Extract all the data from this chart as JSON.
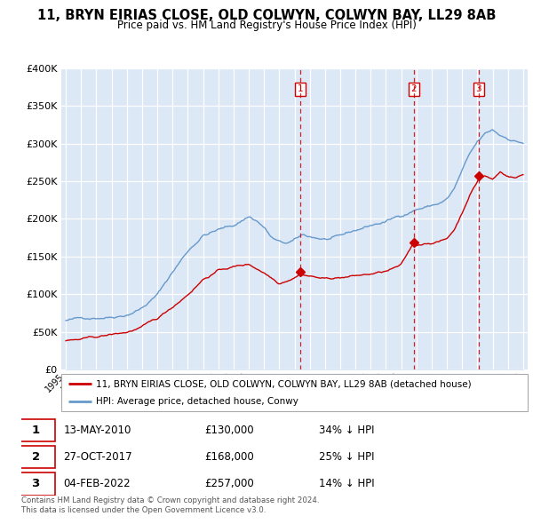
{
  "title": "11, BRYN EIRIAS CLOSE, OLD COLWYN, COLWYN BAY, LL29 8AB",
  "subtitle": "Price paid vs. HM Land Registry's House Price Index (HPI)",
  "legend_property": "11, BRYN EIRIAS CLOSE, OLD COLWYN, COLWYN BAY, LL29 8AB (detached house)",
  "legend_hpi": "HPI: Average price, detached house, Conwy",
  "footer": "Contains HM Land Registry data © Crown copyright and database right 2024.\nThis data is licensed under the Open Government Licence v3.0.",
  "sales": [
    {
      "label": "1",
      "date": "13-MAY-2010",
      "price": 130000,
      "note": "34% ↓ HPI",
      "x": 2010.37
    },
    {
      "label": "2",
      "date": "27-OCT-2017",
      "price": 168000,
      "note": "25% ↓ HPI",
      "x": 2017.82
    },
    {
      "label": "3",
      "date": "04-FEB-2022",
      "price": 257000,
      "note": "14% ↓ HPI",
      "x": 2022.09
    }
  ],
  "property_color": "#cc0000",
  "hpi_color": "#6699cc",
  "hpi_fill_color": "#dce8f5",
  "vline_color": "#cc0000",
  "plot_bg_color": "#dce8f5",
  "ylim": [
    0,
    400000
  ],
  "yticks": [
    0,
    50000,
    100000,
    150000,
    200000,
    250000,
    300000,
    350000,
    400000
  ],
  "xlim_start": 1994.7,
  "xlim_end": 2025.3
}
